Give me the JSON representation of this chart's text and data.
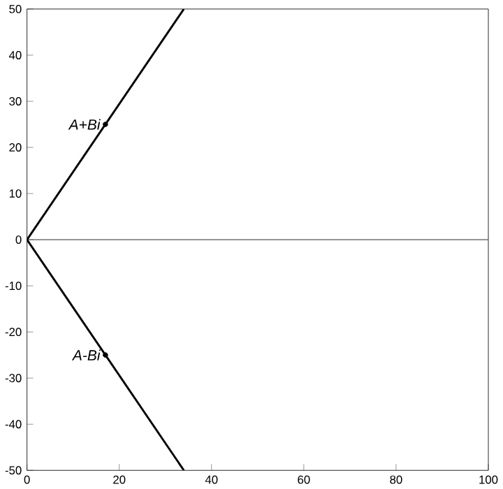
{
  "chart_data": {
    "type": "line",
    "x": [
      0,
      34
    ],
    "series": [
      {
        "color": "#000000",
        "values": [
          0,
          50
        ]
      },
      {
        "color": "#000000",
        "values": [
          0,
          -50
        ]
      },
      {
        "type": "scatter",
        "color": "#000000",
        "x": [
          17,
          17
        ],
        "values": [
          25,
          -25
        ]
      }
    ],
    "xlim": [
      0,
      100
    ],
    "ylim": [
      -50,
      50
    ],
    "xticks": [
      0,
      20,
      40,
      60,
      80,
      100
    ],
    "yticks": [
      -50,
      -40,
      -30,
      -20,
      -10,
      0,
      10,
      20,
      30,
      40,
      50
    ],
    "ref_lines": [
      {
        "axis": "y",
        "value": 0,
        "color": "#555555"
      }
    ],
    "annotations": [
      {
        "text": "A+Bi",
        "x": 17,
        "y": 25
      },
      {
        "text": "A-Bi",
        "x": 17,
        "y": -25
      }
    ],
    "grid": false
  }
}
